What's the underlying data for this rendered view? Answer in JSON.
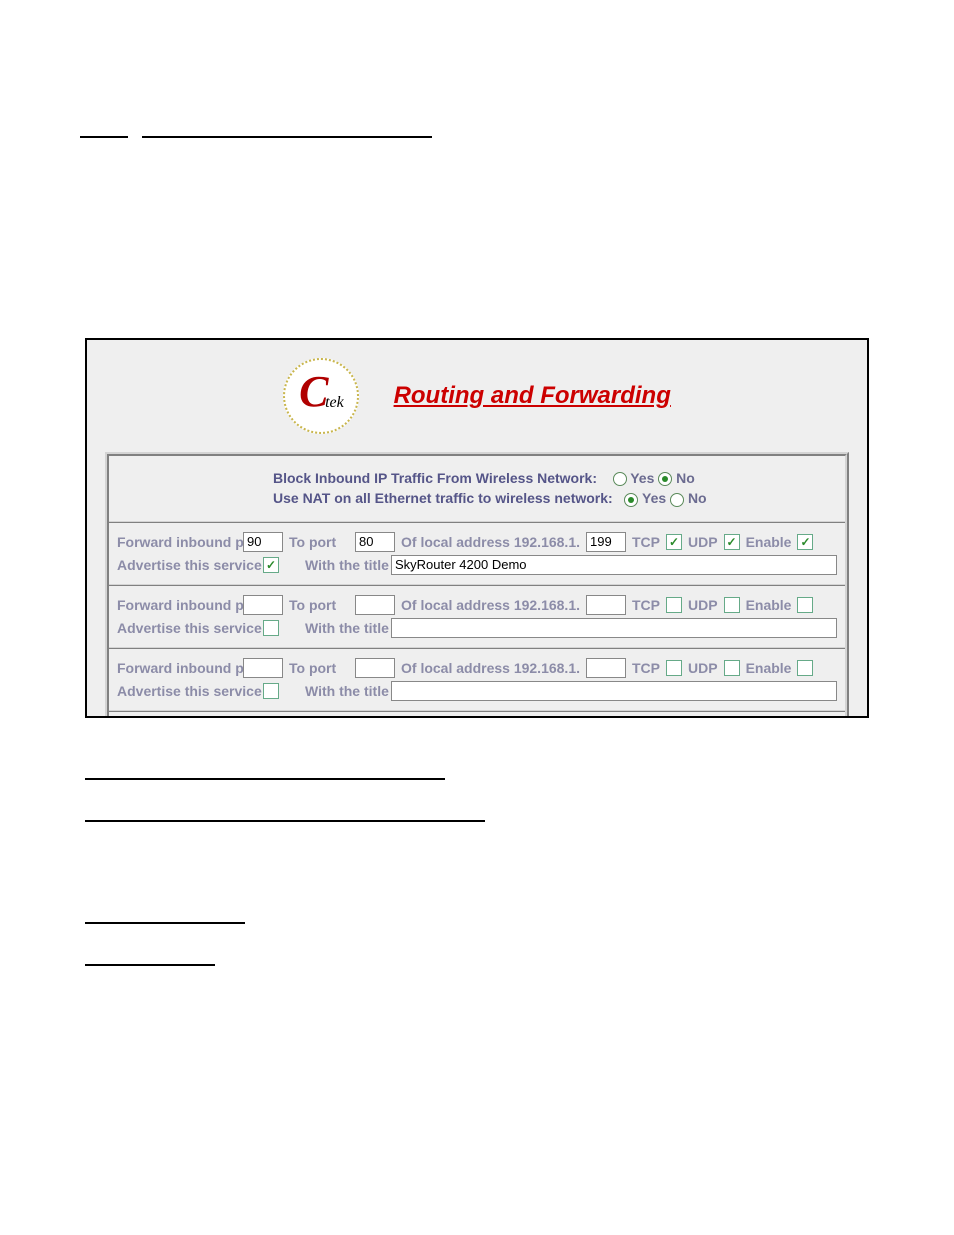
{
  "screenshot": {
    "logo": {
      "c": "C",
      "tek": "tek"
    },
    "title": "Routing and Forwarding",
    "top": {
      "block_label": "Block Inbound IP Traffic From Wireless Network:",
      "nat_label": "Use NAT on all Ethernet traffic to wireless network:",
      "yes": "Yes",
      "no": "No",
      "block_value": "No",
      "nat_value": "Yes"
    },
    "labels": {
      "forward": "Forward inbound port",
      "toport": "To port",
      "oflocal": "Of local address 192.168.1.",
      "tcp": "TCP",
      "udp": "UDP",
      "enable": "Enable",
      "advertise": "Advertise this service",
      "withtitle": "With the title"
    },
    "rows": [
      {
        "in_port": "90",
        "to_port": "80",
        "ip_last": "199",
        "tcp": true,
        "udp": true,
        "enable": true,
        "advertise": true,
        "title": "SkyRouter 4200 Demo"
      },
      {
        "in_port": "",
        "to_port": "",
        "ip_last": "",
        "tcp": false,
        "udp": false,
        "enable": false,
        "advertise": false,
        "title": ""
      },
      {
        "in_port": "",
        "to_port": "",
        "ip_last": "",
        "tcp": false,
        "udp": false,
        "enable": false,
        "advertise": false,
        "title": ""
      },
      {
        "in_port": "",
        "to_port": "",
        "ip_last": "",
        "tcp": false,
        "udp": false,
        "enable": false,
        "advertise": false,
        "title": ""
      }
    ]
  }
}
